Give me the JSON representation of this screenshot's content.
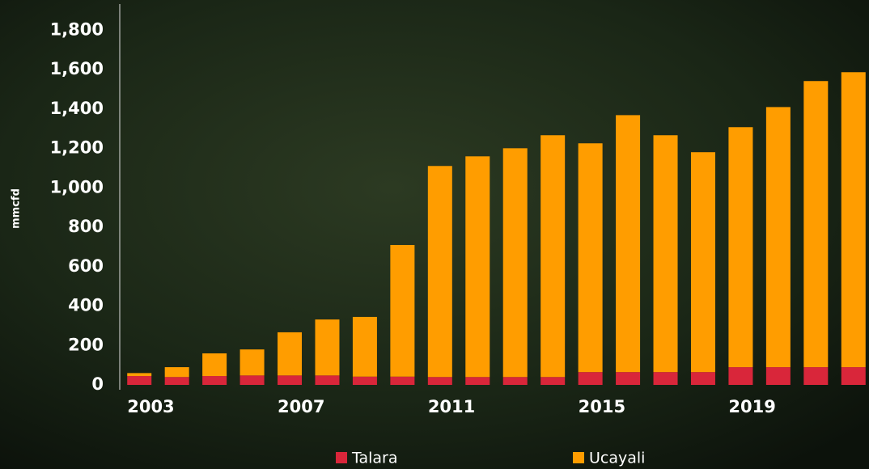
{
  "chart_data": {
    "type": "stacked-bar",
    "y_label": "mmcfd",
    "categories": [
      "2003",
      null,
      null,
      null,
      "2007",
      null,
      null,
      null,
      "2011",
      null,
      null,
      null,
      "2015",
      null,
      null,
      null,
      "2019",
      null,
      null,
      null
    ],
    "series": [
      {
        "name": "Talara",
        "color": "#d9263a",
        "values": [
          45,
          40,
          45,
          48,
          48,
          48,
          42,
          42,
          40,
          40,
          40,
          40,
          65,
          65,
          65,
          65,
          90,
          90,
          90,
          90
        ]
      },
      {
        "name": "Ucayali",
        "color": "#ff9d00",
        "values": [
          15,
          50,
          115,
          132,
          219,
          284,
          303,
          668,
          1071,
          1120,
          1161,
          1227,
          1161,
          1304,
          1202,
          1116,
          1218,
          1320,
          1452,
          1497
        ]
      }
    ],
    "ylim": [
      0,
      1900
    ],
    "yticks": [
      0,
      200,
      400,
      600,
      800,
      {
        "value": 1000,
        "label": "1,000"
      },
      {
        "value": 1200,
        "label": "1,200"
      },
      {
        "value": 1400,
        "label": "1,400"
      },
      {
        "value": 1600,
        "label": "1,600"
      },
      {
        "value": 1800,
        "label": "1,800"
      }
    ],
    "legend": "bottom"
  }
}
